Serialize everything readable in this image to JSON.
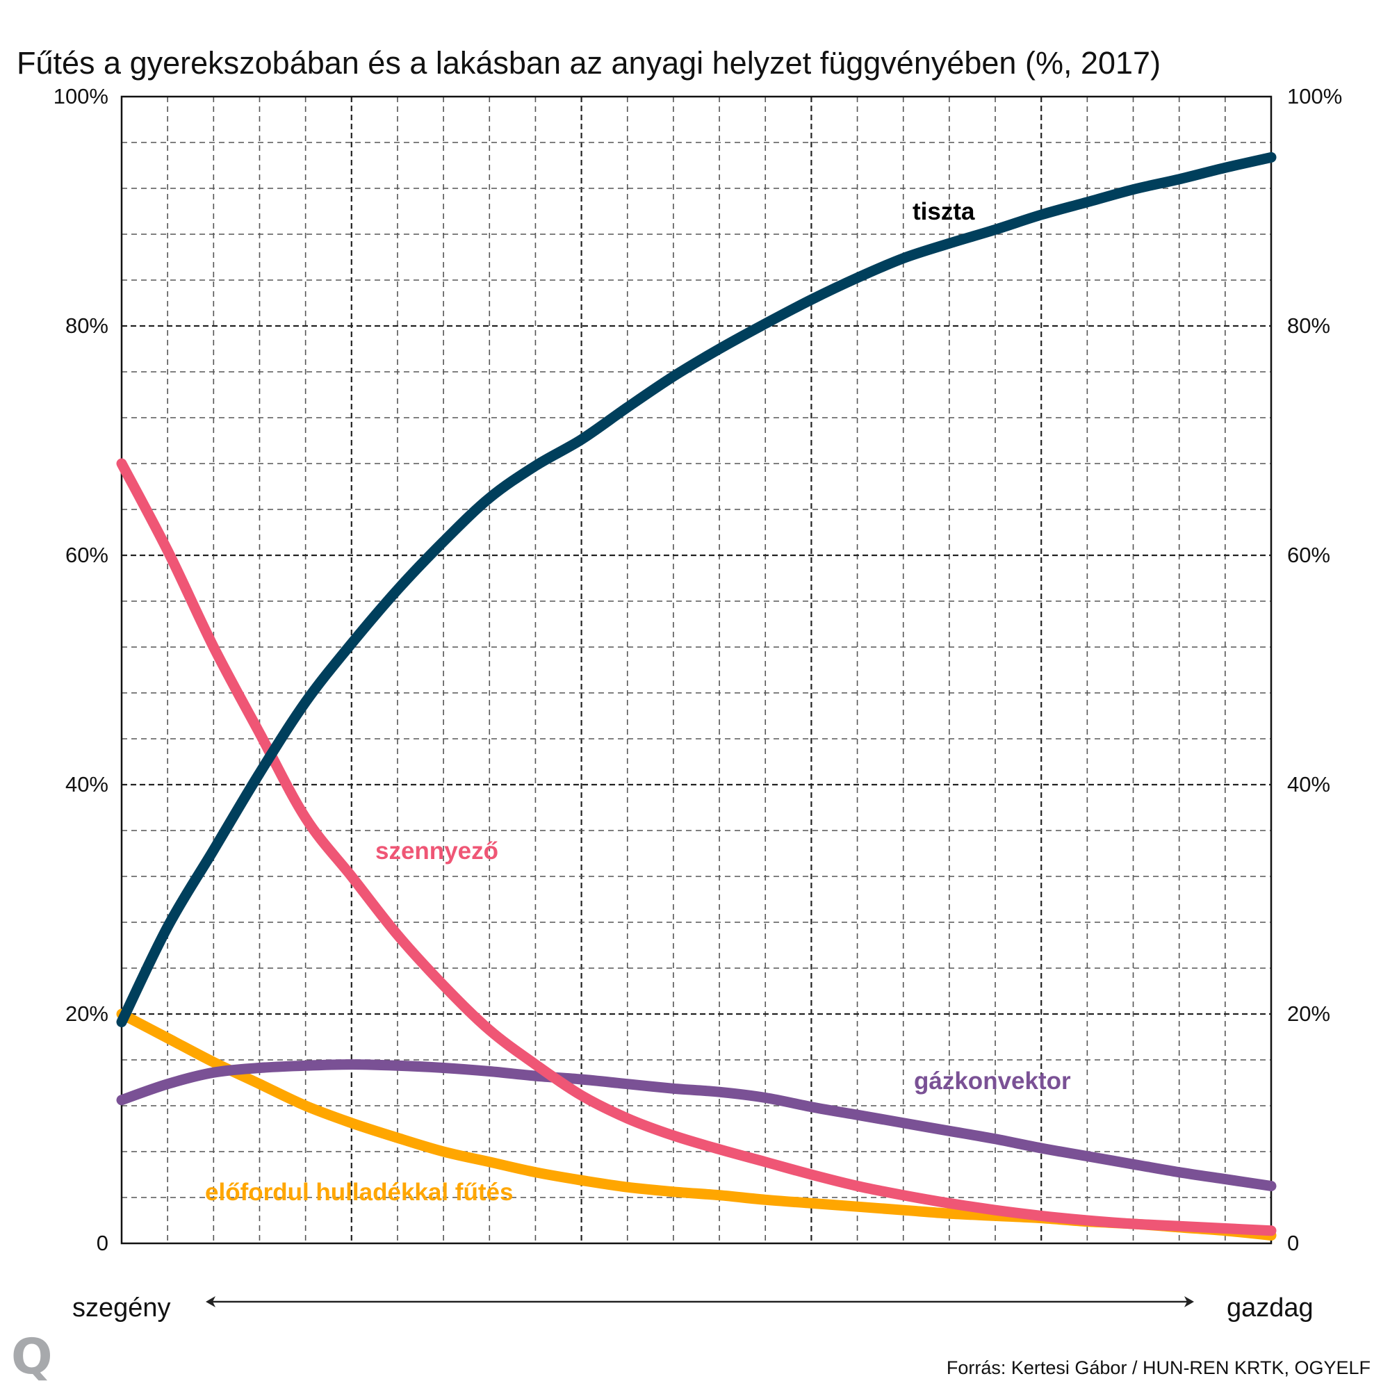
{
  "chart_data": {
    "type": "line",
    "title": "Fűtés a gyerekszobában és a lakásban az anyagi helyzet függvényében (%, 2017)",
    "xlabel": "",
    "ylabel": "",
    "x_axis": {
      "left_label": "szegény",
      "right_label": "gazdag",
      "description": "relative position on the poor-to-rich scale (0 = szegény, 100 = gazdag)",
      "range": [
        0,
        100
      ]
    },
    "ylim": [
      0,
      100
    ],
    "y_ticks": [
      {
        "value": 0,
        "label": "0"
      },
      {
        "value": 20,
        "label": "20%"
      },
      {
        "value": 40,
        "label": "40%"
      },
      {
        "value": 60,
        "label": "60%"
      },
      {
        "value": 80,
        "label": "80%"
      },
      {
        "value": 100,
        "label": "100%"
      }
    ],
    "y_axis_both_sides": true,
    "grid": true,
    "grid_minor_step_x": 4,
    "grid_minor_step_y": 4,
    "legend": "inline labels",
    "x": [
      0,
      4,
      8,
      12,
      16,
      20,
      24,
      28,
      32,
      36,
      40,
      44,
      48,
      52,
      56,
      60,
      64,
      68,
      72,
      76,
      80,
      84,
      88,
      92,
      96,
      100
    ],
    "series": [
      {
        "name": "tiszta",
        "color": "#003f5c",
        "label_color": "#000000",
        "values": [
          19.3,
          27.6,
          34.3,
          41.0,
          47.2,
          52.3,
          57.0,
          61.2,
          65.0,
          67.8,
          70.1,
          72.9,
          75.6,
          78.0,
          80.2,
          82.3,
          84.2,
          85.9,
          87.2,
          88.4,
          89.7,
          90.8,
          91.9,
          92.8,
          93.8,
          94.7
        ]
      },
      {
        "name": "szennyező",
        "color": "#ef5675",
        "label_color": "#ef5675",
        "values": [
          68.0,
          60.4,
          52.0,
          44.5,
          37.1,
          32.0,
          26.9,
          22.5,
          18.6,
          15.6,
          12.9,
          10.9,
          9.4,
          8.2,
          7.1,
          6.0,
          5.0,
          4.2,
          3.5,
          2.9,
          2.4,
          2.0,
          1.7,
          1.5,
          1.3,
          1.1
        ]
      },
      {
        "name": "gázkonvektor",
        "color": "#7a5195",
        "label_color": "#7a5195",
        "values": [
          12.5,
          13.9,
          14.9,
          15.3,
          15.5,
          15.6,
          15.5,
          15.3,
          15.0,
          14.6,
          14.3,
          13.9,
          13.5,
          13.2,
          12.7,
          11.9,
          11.2,
          10.5,
          9.8,
          9.1,
          8.3,
          7.6,
          6.9,
          6.2,
          5.6,
          5.0
        ]
      },
      {
        "name": "előfordul hulladékkal fűtés",
        "color": "#ffa600",
        "label_color": "#ffa600",
        "values": [
          20.0,
          17.9,
          15.8,
          13.9,
          12.0,
          10.5,
          9.2,
          8.0,
          7.1,
          6.2,
          5.5,
          4.9,
          4.5,
          4.2,
          3.8,
          3.5,
          3.2,
          2.9,
          2.6,
          2.4,
          2.2,
          1.9,
          1.7,
          1.4,
          1.1,
          0.7
        ]
      }
    ],
    "annotations": [
      {
        "text": "tiszta",
        "series": "tiszta"
      },
      {
        "text": "szennyező",
        "series": "szennyező"
      },
      {
        "text": "gázkonvektor",
        "series": "gázkonvektor"
      },
      {
        "text": "előfordul hulladékkal fűtés",
        "series": "előfordul hulladékkal fűtés"
      }
    ]
  },
  "source": "Forrás:  Kertesi Gábor / HUN-REN KRTK, OGYELF",
  "logo": {
    "text": "Q",
    "icon": "publisher-logo-q",
    "color": "#a7a9ac"
  }
}
